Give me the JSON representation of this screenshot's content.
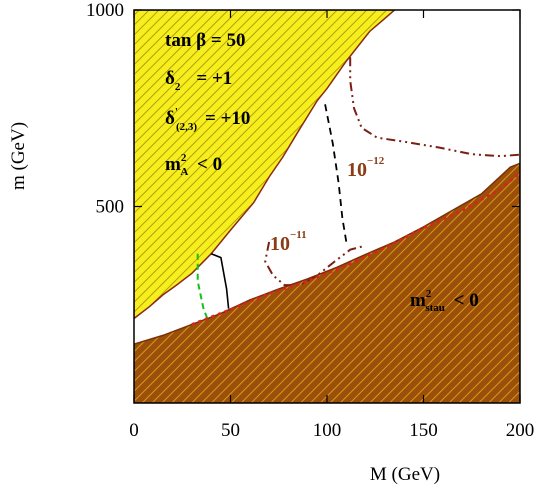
{
  "chart_data": {
    "type": "area",
    "xlabel": "M (GeV)",
    "ylabel": "m (GeV)",
    "xlim": [
      0,
      200
    ],
    "ylim": [
      0,
      1000
    ],
    "xticks": [
      "0",
      "50",
      "100",
      "150",
      "200"
    ],
    "yticks": [
      "500",
      "1000"
    ],
    "ytick_values": [
      500,
      1000
    ],
    "grid": false,
    "colors": {
      "upper_region": "#f2ee1a",
      "lower_region": "#9a4a0c",
      "contour_low": "#7a1f14",
      "contour_high": "#7a1f14",
      "dashed_black": "#000000",
      "dashed_green": "#16c016",
      "dotted_red": "#e02020"
    },
    "regions": [
      {
        "label_main": "m",
        "label_sup": "2",
        "label_sub": "A",
        "label_tail": " < 0",
        "boundary": [
          [
            0,
            1000
          ],
          [
            135,
            1000
          ],
          [
            122,
            945
          ],
          [
            110,
            870
          ],
          [
            100,
            800
          ],
          [
            95,
            770
          ],
          [
            85,
            690
          ],
          [
            77,
            625
          ],
          [
            70,
            575
          ],
          [
            62,
            510
          ],
          [
            50,
            440
          ],
          [
            40,
            380
          ],
          [
            30,
            330
          ],
          [
            22,
            300
          ],
          [
            15,
            275
          ],
          [
            8,
            245
          ],
          [
            0,
            215
          ]
        ]
      },
      {
        "label_main": "m",
        "label_sup": "2",
        "label_sub": "stau",
        "label_tail": " < 0",
        "boundary": [
          [
            0,
            150
          ],
          [
            15,
            172
          ],
          [
            30,
            200
          ],
          [
            45,
            228
          ],
          [
            60,
            262
          ],
          [
            75,
            290
          ],
          [
            90,
            316
          ],
          [
            105,
            345
          ],
          [
            120,
            378
          ],
          [
            135,
            410
          ],
          [
            150,
            448
          ],
          [
            165,
            490
          ],
          [
            180,
            532
          ],
          [
            195,
            600
          ],
          [
            200,
            610
          ],
          [
            200,
            0
          ],
          [
            0,
            0
          ]
        ]
      }
    ],
    "series": [
      {
        "name": "10",
        "name_sup": "−11",
        "style": "dashdot",
        "points": [
          [
            70,
            410
          ],
          [
            68,
            360
          ],
          [
            72,
            325
          ],
          [
            78,
            300
          ],
          [
            86,
            300
          ],
          [
            95,
            325
          ],
          [
            104,
            360
          ],
          [
            112,
            390
          ],
          [
            118,
            398
          ]
        ]
      },
      {
        "name": "10",
        "name_sup": "−12",
        "style": "dashdot",
        "points": [
          [
            112,
            880
          ],
          [
            112,
            820
          ],
          [
            114,
            750
          ],
          [
            118,
            700
          ],
          [
            126,
            675
          ],
          [
            140,
            665
          ],
          [
            158,
            650
          ],
          [
            175,
            633
          ],
          [
            190,
            628
          ],
          [
            200,
            632
          ]
        ]
      },
      {
        "style": "dashed",
        "points": [
          [
            99,
            760
          ],
          [
            103,
            660
          ],
          [
            106,
            560
          ],
          [
            108,
            470
          ],
          [
            110,
            410
          ]
        ]
      },
      {
        "style": "solid-black",
        "points": [
          [
            40,
            380
          ],
          [
            45,
            370
          ],
          [
            48,
            290
          ],
          [
            49,
            240
          ]
        ]
      },
      {
        "style": "dashed-green",
        "points": [
          [
            33,
            380
          ],
          [
            33,
            310
          ],
          [
            36,
            240
          ],
          [
            38,
            215
          ]
        ]
      },
      {
        "style": "dotted-red",
        "points": [
          [
            30,
            200
          ],
          [
            50,
            238
          ],
          [
            70,
            278
          ],
          [
            90,
            310
          ],
          [
            110,
            350
          ],
          [
            130,
            395
          ],
          [
            150,
            445
          ],
          [
            170,
            490
          ],
          [
            190,
            545
          ],
          [
            200,
            585
          ]
        ]
      }
    ],
    "annotations": {
      "tanb": "tan β = 50",
      "delta2_symbol": "δ",
      "delta2_sub": "2",
      "delta2_value": "= +1",
      "delta23_symbol": "δ",
      "delta23_sup": "'",
      "delta23_sub": "(2,3)",
      "delta23_value": "= +10"
    }
  }
}
